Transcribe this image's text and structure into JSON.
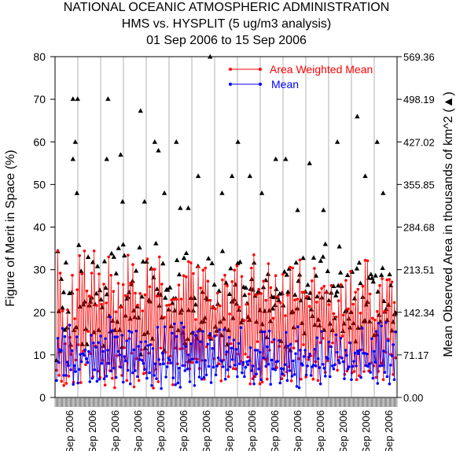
{
  "chart_data": {
    "type": "scatter",
    "title_lines": [
      "NATIONAL OCEANIC ATMOSPHERIC ADMINISTRATION",
      "HMS vs. HYSPLIT (5 ug/m3 analysis)",
      "01 Sep 2006 to 15 Sep 2006"
    ],
    "ylabel_left": "Figure of Merit in Space (%)",
    "ylabel_right": "Mean Observed Area in thousands of km^2 (▲)",
    "ylim_left": [
      0,
      80
    ],
    "left_ticks": [
      "0",
      "10",
      "20",
      "30",
      "40",
      "50",
      "60",
      "70",
      "80"
    ],
    "ylim_right": [
      0,
      569.36
    ],
    "right_ticks": [
      "0.00",
      "71.17",
      "142.34",
      "213.51",
      "284.68",
      "355.85",
      "427.02",
      "498.19",
      "569.36"
    ],
    "x_tick_labels": [
      "Sep 2006",
      "Sep 2006",
      "Sep 2006",
      "Sep 2006",
      "Sep 2006",
      "Sep 2006",
      "Sep 2006",
      "Sep 2006",
      "Sep 2006",
      "Sep 2006",
      "Sep 2006",
      "Sep 2006",
      "Sep 2006",
      "Sep 2006",
      "Sep 2006"
    ],
    "grid": "vertical separators between days",
    "legend_position": "top-right",
    "colors": {
      "area_weighted_mean": "#ff0000",
      "mean": "#0000ff",
      "area": "#000000"
    },
    "series": [
      {
        "name": "Area Weighted Mean",
        "color": "#ff0000",
        "values": [
          6.4,
          34.4,
          5.2,
          29.2,
          3.8,
          20.3,
          2.8,
          12.6,
          3.3,
          20.6,
          5.0,
          14.1,
          10.1,
          28.7,
          3.6,
          18.5,
          8.8,
          25.3,
          12.4,
          33.3,
          3.5,
          29.0,
          10.9,
          34.4,
          7.7,
          25.0,
          15.5,
          23.8,
          10.3,
          29.2,
          4.9,
          34.4,
          12.1,
          21.6,
          6.2,
          29.0,
          4.7,
          21.9,
          8.7,
          26.6,
          2.9,
          22.2,
          8.0,
          33.0,
          6.3,
          28.7,
          4.5,
          24.9,
          2.3,
          20.1,
          9.8,
          26.8,
          7.2,
          21.2,
          5.2,
          26.5,
          11.7,
          23.9,
          4.0,
          33.4,
          13.8,
          26.8,
          10.4,
          31.2,
          2.5,
          24.5,
          9.1,
          21.7,
          4.0,
          24.4,
          11.2,
          20.3,
          5.6,
          24.1,
          5.8,
          32.5,
          10.4,
          26.0,
          12.4,
          30.1,
          2.2,
          30.1,
          6.6,
          23.8,
          3.7,
          33.0,
          11.6,
          26.6,
          8.9,
          18.8,
          10.6,
          21.6,
          8.1,
          21.7,
          9.7,
          22.9,
          3.0,
          23.1,
          11.6,
          23.1,
          7.9,
          26.4,
          11.4,
          23.1,
          11.5,
          28.6,
          7.5,
          28.3,
          8.3,
          31.9,
          6.7,
          31.6,
          8.2,
          29.1,
          9.1,
          18.3,
          9.0,
          30.7,
          6.8,
          25.7,
          8.7,
          29.9,
          4.3,
          30.4,
          11.9,
          27.3,
          14.0,
          22.8,
          14.0,
          21.3,
          9.1,
          20.8,
          14.6,
          24.5,
          7.9,
          21.5,
          3.9,
          27.6,
          8.8,
          28.7,
          10.1,
          26.2,
          4.9,
          19.6,
          12.6,
          27.2,
          6.8,
          29.9,
          6.7,
          30.9,
          10.2,
          21.2,
          8.5,
          28.4,
          7.7,
          18.1,
          10.2,
          21.9,
          9.5,
          24.3,
          3.2,
          30.4,
          4.4,
          33.5,
          4.9,
          24.1,
          13.1,
          25.4,
          3.2,
          24.4,
          3.6,
          27.3,
          9.0,
          22.8,
          4.3,
          31.4,
          11.1,
          25.8,
          13.0,
          18.6,
          6.7,
          28.6,
          7.0,
          23.6,
          12.0,
          22.2,
          4.4,
          28.9,
          5.2,
          19.2,
          6.0,
          24.0,
          7.2,
          30.6,
          3.9,
          30.4,
          11.6,
          22.9,
          13.2,
          23.1,
          9.1,
          32.3,
          4.3,
          24.7,
          12.4,
          24.8,
          4.8,
          23.7,
          8.9,
          21.4,
          9.8,
          27.4,
          4.3,
          30.3,
          8.4,
          22.4,
          4.0,
          24.6,
          12.9,
          25.6,
          13.9,
          26.1,
          5.9,
          24.7,
          8.6,
          21.8,
          12.0,
          26.3,
          12.8,
          19.7,
          7.7,
          18.9,
          6.4,
          22.7,
          9.5,
          26.5,
          14.4,
          19.3,
          5.4,
          27.5,
          6.2,
          20.8,
          12.9,
          29.6,
          5.8,
          21.9,
          6.1,
          24.7,
          4.2,
          25.4,
          5.1,
          19.8,
          11.2,
          26.1,
          6.1,
          32.2,
          7.5,
          32.1,
          6.2,
          24.3,
          8.1,
          18.6,
          7.4,
          18.2,
          4.7,
          20.2,
          6.1,
          26.3,
          8.1,
          27.9,
          4.2,
          20.2,
          10.6,
          27.6,
          13.7,
          27.7,
          10.1,
          27.1,
          5.4,
          22.3,
          9.3
        ]
      },
      {
        "name": "Mean",
        "color": "#0000ff",
        "values": [
          4.0,
          13.9,
          8.2,
          11.2,
          11.0,
          16.2,
          5.2,
          14.3,
          5.2,
          8.3,
          7.5,
          17.0,
          6.5,
          11.0,
          3.1,
          7.5,
          6.1,
          14.2,
          3.4,
          6.6,
          10.1,
          8.4,
          10.3,
          9.9,
          11.2,
          9.1,
          8.2,
          10.8,
          3.7,
          14.6,
          4.5,
          12.8,
          6.5,
          11.8,
          3.8,
          12.9,
          4.3,
          14.4,
          8.0,
          10.8,
          4.4,
          13.8,
          5.0,
          11.1,
          8.0,
          18.9,
          6.2,
          15.7,
          6.9,
          14.2,
          4.7,
          14.2,
          10.8,
          10.0,
          7.1,
          14.6,
          3.6,
          9.6,
          8.6,
          13.3,
          6.4,
          15.6,
          3.2,
          15.3,
          5.8,
          11.2,
          6.3,
          15.6,
          4.9,
          12.0,
          8.9,
          13.0,
          8.7,
          8.0,
          6.6,
          13.1,
          4.5,
          12.2,
          5.8,
          12.4,
          2.8,
          11.5,
          5.2,
          7.9,
          4.4,
          16.5,
          8.9,
          7.8,
          2.1,
          10.4,
          7.9,
          16.6,
          4.8,
          7.2,
          9.3,
          8.8,
          8.1,
          15.1,
          4.6,
          17.3,
          3.0,
          14.3,
          3.4,
          6.9,
          2.4,
          17.5,
          7.5,
          16.5,
          6.3,
          12.0,
          6.7,
          10.0,
          3.7,
          12.6,
          9.0,
          15.3,
          2.8,
          14.6,
          8.3,
          15.5,
          4.8,
          13.1,
          4.3,
          15.5,
          4.7,
          8.7,
          5.3,
          12.5,
          7.3,
          15.0,
          3.5,
          11.5,
          7.1,
          14.4,
          5.3,
          7.4,
          9.3,
          15.9,
          8.7,
          8.5,
          7.2,
          15.9,
          4.3,
          10.7,
          6.5,
          14.1,
          7.2,
          11.6,
          8.9,
          13.5,
          7.6,
          11.3,
          4.9,
          12.7,
          7.9,
          16.4,
          5.8,
          8.2,
          4.9,
          7.1,
          8.4,
          7.7,
          8.6,
          11.7,
          6.3,
          7.4,
          3.2,
          11.1,
          5.5,
          11.1,
          6.7,
          10.6,
          4.2,
          15.4,
          9.3,
          15.4,
          7.3,
          11.9,
          7.8,
          15.6,
          3.1,
          8.8,
          6.7,
          13.6,
          6.5,
          8.4,
          8.5,
          13.4,
          3.4,
          6.8,
          5.5,
          6.7,
          7.7,
          15.3,
          4.0,
          12.1,
          6.3,
          12.5,
          5.0,
          8.6,
          5.4,
          10.3,
          2.6,
          16.6,
          2.3,
          11.1,
          7.9,
          7.6,
          9.6,
          11.1,
          5.3,
          7.4,
          9.5,
          10.2,
          5.2,
          7.2,
          7.6,
          11.3,
          7.4,
          14.0,
          9.1,
          7.0,
          3.2,
          15.5,
          7.8,
          6.9,
          5.0,
          9.4,
          9.1,
          13.0,
          4.9,
          11.9,
          7.4,
          6.7,
          7.7,
          14.7,
          10.6,
          8.7,
          8.1,
          13.9,
          9.3,
          8.4,
          4.4,
          11.1,
          9.9,
          6.7,
          7.2,
          12.8,
          4.2,
          7.3,
          8.5,
          10.4,
          7.4,
          10.9,
          10.3,
          11.1,
          4.7,
          16.3,
          10.4,
          10.4,
          7.5,
          10.2,
          7.3,
          7.9,
          5.9,
          13.8,
          4.5,
          10.8,
          8.3,
          15.5,
          3.3,
          17.4,
          7.4,
          16.8,
          7.5,
          10.9,
          5.9,
          17.6,
          4.9,
          13.3,
          3.2,
          7.6,
          9.8,
          12.4,
          4.2,
          15.4
        ]
      },
      {
        "name": "Mean Observed Area",
        "color": "#000000",
        "marker": "triangle",
        "values": [
          62.3,
          244.5,
          144.3,
          77.7,
          198.1,
          150.2,
          175.9,
          113.1,
          225.6,
          117.0,
          143.4,
          174.4,
          88.2,
          175.7,
          498.9,
          112.9,
          427.1,
          117.4,
          498.9,
          254.8,
          152.0,
          211.2,
          89.2,
          155.5,
          160.3,
          114.6,
          89.2,
          234.8,
          154.0,
          160.2,
          167.1,
          226.2,
          109.1,
          155.9,
          173.8,
          219.3,
          112.8,
          179.4,
          163.8,
          150.6,
          86.3,
          227.6,
          183.3,
          172.5,
          498.9,
          136.6,
          110.5,
          240.7,
          128.3,
          235.0,
          112.6,
          207.4,
          126.4,
          249.6,
          113.0,
          152.6,
          84.4,
          255.6,
          237.2,
          136.8,
          165.3,
          168.1,
          175.9,
          131.7,
          189.4,
          194.9,
          145.3,
          134.5,
          211.7,
          152.2,
          133.3,
          250.8,
          72.4,
          168.5,
          227.3,
          105.9,
          82.5,
          227.1,
          108.6,
          162.5,
          160.5,
          215.6,
          98.3,
          200.8,
          427.1,
          257.6,
          181.4,
          172.9,
          153.6,
          171.7,
          133.8,
          223.9,
          79.2,
          166.7,
          180.1,
          180.2,
          147.1,
          183.8,
          119.2,
          157.8,
          165.5,
          145.3,
          165.8,
          229.5,
          112.6,
          205.7,
          142.0,
          146.2,
          108.5,
          233.1,
          91.2,
          241.4,
          98.0,
          146.2,
          61.4,
          166.5,
          108.2,
          145.4,
          166.3,
          155.4,
          98.5,
          219.6,
          113.2,
          112.9,
          126.3,
          176.4,
          127.3,
          133.4,
          166.6,
          164.0,
          232.4,
          105.4,
          98.3,
          224.5,
          151.2,
          188.6,
          118.4,
          111.6,
          156.4,
          178.2,
          126.7,
          104.1,
          244.6,
          131.8,
          114.9,
          191.7,
          88.5,
          112.6,
          173.0,
          215.9,
          160.3,
          132.7,
          163.8,
          188.8,
          156.8,
          224.5,
          146.6,
          226.6,
          125.5,
          129.5,
          184.6,
          171.4,
          183.5,
          157.4,
          134.6,
          129.7,
          181.3,
          197.8,
          180.3,
          225.3,
          170.0,
          126.6,
          175.3,
          176.8,
          146.1,
          111.0,
          122.6,
          184.3,
          144.5,
          196.1,
          100.9,
          206.3,
          145.3,
          127.7,
          168.8,
          148.6,
          167.8,
          154.6,
          181.2,
          167.6,
          162.7,
          173.5,
          94.4,
          174.4,
          154.0,
          210.2,
          85.0,
          205.0,
          176.5,
          215.3,
          79.1,
          142.3,
          143.4,
          117.2,
          171.6,
          225.4,
          148.9,
          194.8,
          205.3,
          162.3,
          124.5,
          233.1,
          107.2,
          176.9,
          167.4,
          188.3,
          166.2,
          174.8,
          147.2,
          136.1,
          233.6,
          121.6,
          203.5,
          168.8,
          129.9,
          120.5,
          228.4,
          167.0,
          235.3,
          112.9,
          256.5,
          176.6,
          211.1,
          162.3,
          123.3,
          175.1,
          112.5,
          186.2,
          132.6,
          170.6,
          176.9,
          187.1,
          252.3,
          208.8,
          186.4,
          111.2,
          123.7,
          143.8,
          145.8,
          204.6,
          131.9,
          116.9,
          142.8,
          210.0,
          124.1,
          165.6,
          93.7,
          215.6,
          116.4,
          225.2,
          191.1,
          116.9,
          168.1,
          127.3,
          128.5,
          155.3,
          159.9,
          200.0,
          127.2,
          205.9,
          199.6,
          193.7,
          104.3,
          203.7,
          105.5,
          177.0,
          138.0,
          127.3,
          204.7,
          216.4,
          161.2,
          143.6,
          147.6,
          129.5,
          154.9,
          205.9,
          187.4,
          111.9,
          126.4,
          139.2,
          141.8
        ]
      }
    ],
    "area_peaks": [
      {
        "day_position": 0.09,
        "value": 56.0
      },
      {
        "day_position": 0.11,
        "value": 48.0
      },
      {
        "day_position": 0.26,
        "value": 56.0
      },
      {
        "day_position": 0.33,
        "value": 57.0
      },
      {
        "day_position": 0.34,
        "value": 46.0
      },
      {
        "day_position": 0.43,
        "value": 67.3
      },
      {
        "day_position": 0.45,
        "value": 46.0
      },
      {
        "day_position": 0.52,
        "value": 58.0
      },
      {
        "day_position": 0.55,
        "value": 48.0
      },
      {
        "day_position": 0.61,
        "value": 60.0
      },
      {
        "day_position": 0.63,
        "value": 44.5
      },
      {
        "day_position": 0.67,
        "value": 44.5
      },
      {
        "day_position": 0.72,
        "value": 52.0
      },
      {
        "day_position": 0.78,
        "value": 80.0
      },
      {
        "day_position": 0.84,
        "value": 48.0
      },
      {
        "day_position": 0.89,
        "value": 52.0
      },
      {
        "day_position": 0.92,
        "value": 60.0
      },
      {
        "day_position": 0.98,
        "value": 52.0
      },
      {
        "day_position": 1.04,
        "value": 48.0
      },
      {
        "day_position": 1.11,
        "value": 56.0
      },
      {
        "day_position": 1.16,
        "value": 56.0
      },
      {
        "day_position": 1.22,
        "value": 44.0
      },
      {
        "day_position": 1.28,
        "value": 55.0
      },
      {
        "day_position": 1.35,
        "value": 44.0
      },
      {
        "day_position": 1.42,
        "value": 60.0
      },
      {
        "day_position": 1.52,
        "value": 66.0
      },
      {
        "day_position": 1.56,
        "value": 52.0
      },
      {
        "day_position": 1.62,
        "value": 60.0
      },
      {
        "day_position": 1.65,
        "value": 48.0
      }
    ],
    "legend": [
      "Area Weighted Mean",
      "Mean"
    ]
  }
}
